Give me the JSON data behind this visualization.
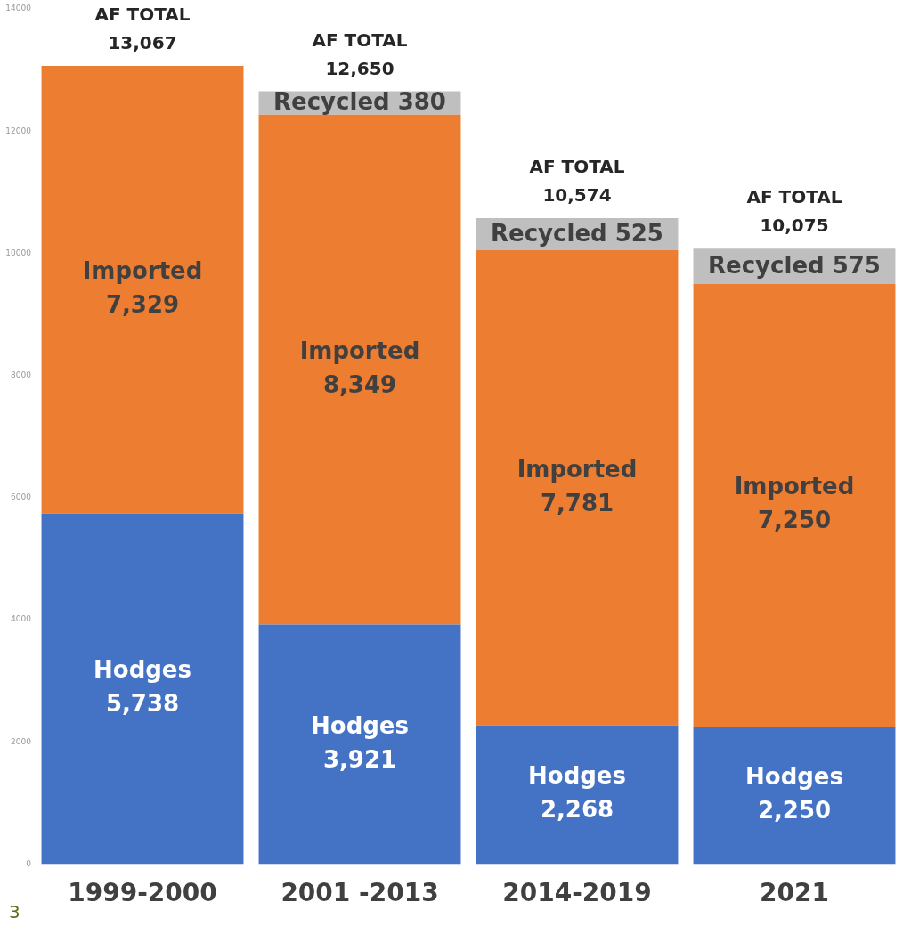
{
  "chart_data": {
    "type": "bar",
    "stacked": true,
    "categories": [
      "1999-2000",
      "2001 -2013",
      "2014-2019",
      "2021"
    ],
    "series": [
      {
        "name": "Hodges",
        "color": "#4472c4",
        "values": [
          5738,
          3921,
          2268,
          2250
        ],
        "value_labels": [
          "5,738",
          "3,921",
          "2,268",
          "2,250"
        ]
      },
      {
        "name": "Imported",
        "color": "#ed7d31",
        "values": [
          7329,
          8349,
          7781,
          7250
        ],
        "value_labels": [
          "7,329",
          "8,349",
          "7,781",
          "7,250"
        ]
      },
      {
        "name": "Recycled",
        "color": "#bfbfbf",
        "values": [
          null,
          380,
          525,
          575
        ],
        "value_labels": [
          null,
          "380",
          "525",
          "575"
        ]
      }
    ],
    "totals": [
      "AF TOTAL 13,067",
      "AF TOTAL 12,650",
      "AF TOTAL 10,574",
      "AF TOTAL 10,075"
    ],
    "ylim": [
      0,
      14000
    ],
    "yticks": [
      0,
      2000,
      4000,
      6000,
      8000,
      10000,
      12000,
      14000
    ],
    "grid": false,
    "legend": false,
    "annotations": [
      "3"
    ]
  }
}
